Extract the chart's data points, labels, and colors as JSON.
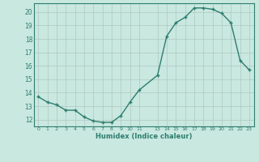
{
  "all_x": [
    0,
    1,
    2,
    3,
    4,
    5,
    6,
    7,
    8,
    9,
    10,
    11,
    13,
    14,
    15,
    16,
    17,
    18,
    19,
    20,
    21,
    22,
    23
  ],
  "all_y": [
    13.7,
    13.3,
    13.1,
    12.7,
    12.7,
    12.2,
    11.9,
    11.8,
    11.8,
    12.3,
    13.3,
    14.2,
    15.3,
    18.2,
    19.2,
    19.6,
    20.3,
    20.3,
    20.2,
    19.9,
    19.2,
    16.4,
    15.7
  ],
  "xlim": [
    -0.5,
    23.5
  ],
  "ylim": [
    11.5,
    20.65
  ],
  "yticks": [
    12,
    13,
    14,
    15,
    16,
    17,
    18,
    19,
    20
  ],
  "xtick_positions": [
    0,
    1,
    2,
    3,
    4,
    5,
    6,
    7,
    8,
    9,
    10,
    11,
    13,
    14,
    15,
    16,
    17,
    18,
    19,
    20,
    21,
    22,
    23
  ],
  "xtick_labels": [
    "0",
    "1",
    "2",
    "3",
    "4",
    "5",
    "6",
    "7",
    "8",
    "9",
    "10",
    "11",
    "13",
    "14",
    "15",
    "16",
    "17",
    "18",
    "19",
    "20",
    "21",
    "22",
    "23"
  ],
  "xlabel": "Humidex (Indice chaleur)",
  "line_color": "#2e7d6e",
  "bg_color": "#c8e8e0",
  "grid_color": "#b0c8c0"
}
